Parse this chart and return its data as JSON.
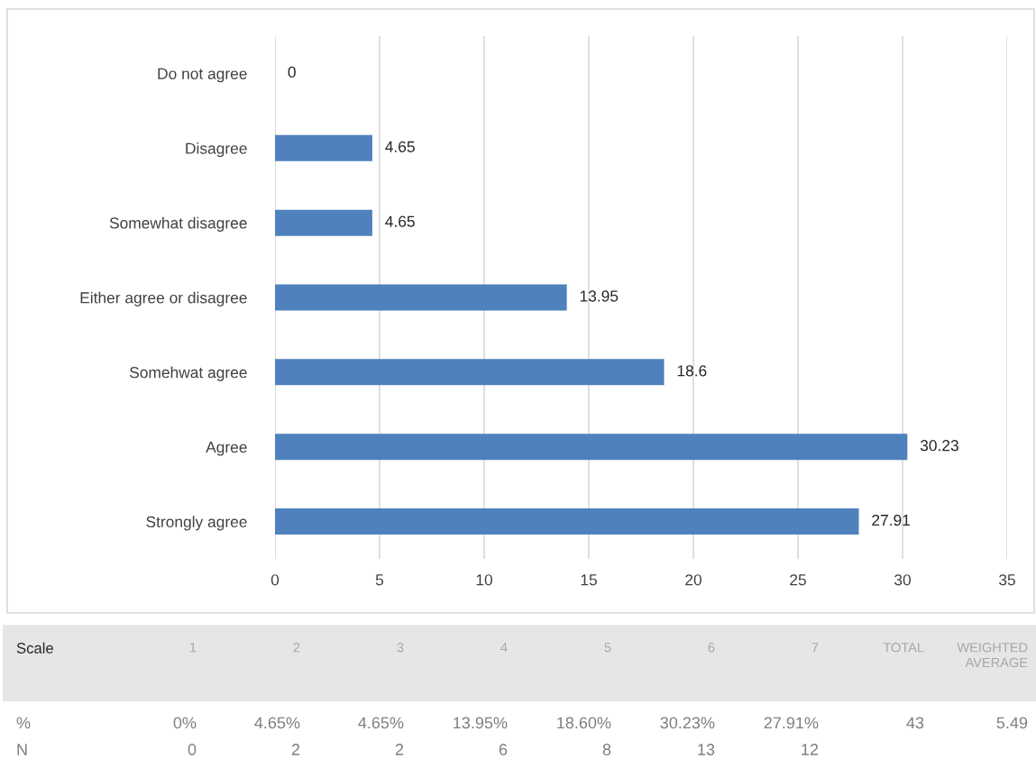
{
  "chart_data": {
    "type": "bar",
    "orientation": "horizontal",
    "categories": [
      "Do not agree",
      "Disagree",
      "Somewhat disagree",
      "Either agree or disagree",
      "Somehwat agree",
      "Agree",
      "Strongly agree"
    ],
    "values": [
      0,
      4.65,
      4.65,
      13.95,
      18.6,
      30.23,
      27.91
    ],
    "color": "#4f81bd",
    "xlim": [
      0,
      35
    ],
    "xticks": [
      0,
      5,
      10,
      15,
      20,
      25,
      30,
      35
    ],
    "grid": "x",
    "data_labels": true,
    "annotations": [
      "Scale",
      "1",
      "2",
      "3",
      "4",
      "5",
      "6",
      "7",
      "TOTAL",
      "WEIGHTED\nAVERAGE",
      "%",
      "0%",
      "4.65%",
      "4.65%",
      "13.95%",
      "18.60%",
      "30.23%",
      "27.91%",
      "43",
      "5.49",
      "N",
      "0",
      "2",
      "2",
      "6",
      "8",
      "13",
      "12"
    ]
  }
}
